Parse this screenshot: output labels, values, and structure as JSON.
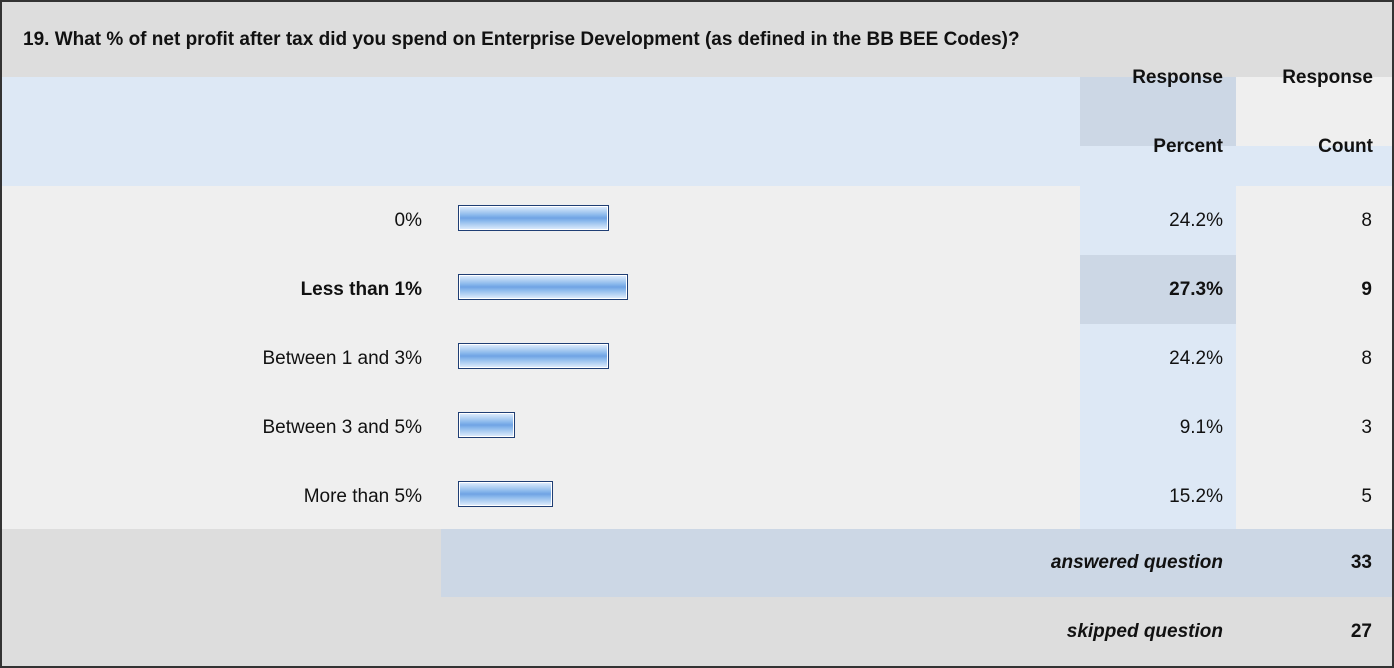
{
  "question": {
    "title": "19. What % of net profit after tax did you spend on Enterprise Development (as defined in the BB BEE Codes)?"
  },
  "header": {
    "percent_line1": "Response",
    "percent_line2": "Percent",
    "count_line1": "Response",
    "count_line2": "Count"
  },
  "chart_data": {
    "type": "bar",
    "orientation": "horizontal",
    "categories": [
      "0%",
      "Less than 1%",
      "Between 1 and 3%",
      "Between 3 and 5%",
      "More than 5%"
    ],
    "values": [
      24.2,
      27.3,
      24.2,
      9.1,
      15.2
    ],
    "counts": [
      8,
      9,
      8,
      3,
      5
    ],
    "value_labels": [
      "24.2%",
      "27.3%",
      "24.2%",
      "9.1%",
      "15.2%"
    ],
    "count_labels": [
      "8",
      "9",
      "8",
      "3",
      "5"
    ],
    "highlighted_index": 1,
    "xlim": [
      0,
      100
    ],
    "bar_color": "#8ab8ec",
    "bar_border_color": "#1f3e74"
  },
  "summary": {
    "answered_label": "answered question",
    "answered_value": "33",
    "skipped_label": "skipped question",
    "skipped_value": "27"
  },
  "colors": {
    "question_bg": "#dddddd",
    "header_bg": "#dde8f5",
    "highlight_bg": "#ccd7e5",
    "row_bg": "#efefef"
  }
}
